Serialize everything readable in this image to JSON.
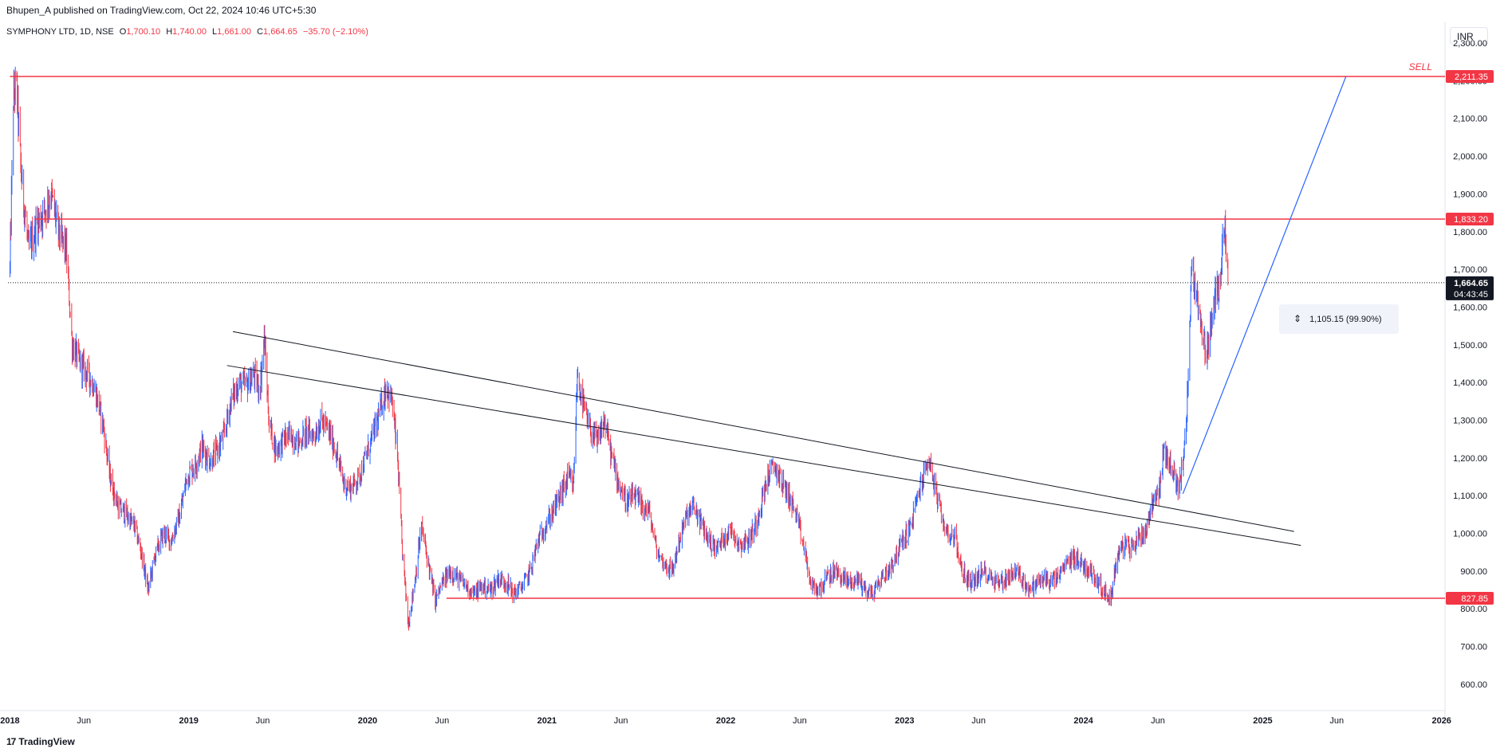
{
  "header": {
    "published": "Bhupen_A published on TradingView.com, Oct 22, 2024 10:46 UTC+5:30"
  },
  "legend": {
    "symbol": "SYMPHONY LTD, 1D, NSE",
    "o_label": "O",
    "o_value": "1,700.10",
    "h_label": "H",
    "h_value": "1,740.00",
    "l_label": "L",
    "l_value": "1,661.00",
    "c_label": "C",
    "c_value": "1,664.65",
    "change": "−35.70 (−2.10%)"
  },
  "currency": "INR",
  "brand": {
    "name": "TradingView",
    "logo_glyph": "17"
  },
  "measure_label": "1,105.15 (99.90%)",
  "sell_label": "SELL",
  "colors": {
    "up": "#2962ff",
    "down": "#f23645",
    "trend": "#131722",
    "projection": "#2962ff",
    "level": "#f23645"
  },
  "chart_data": {
    "type": "candlestick",
    "title": "",
    "y_range": [
      530,
      2355
    ],
    "x_range": [
      "2017-12-28",
      "2026-01-08"
    ],
    "y_ticks": [
      "600.00",
      "700.00",
      "800.00",
      "900.00",
      "1,000.00",
      "1,100.00",
      "1,200.00",
      "1,300.00",
      "1,400.00",
      "1,500.00",
      "1,600.00",
      "1,700.00",
      "1,800.00",
      "1,900.00",
      "2,000.00",
      "2,100.00",
      "2,200.00",
      "2,300.00"
    ],
    "y_tick_values": [
      600,
      700,
      800,
      900,
      1000,
      1100,
      1200,
      1300,
      1400,
      1500,
      1600,
      1700,
      1800,
      1900,
      2000,
      2100,
      2200,
      2300
    ],
    "x_ticks": [
      {
        "label": "2018",
        "date": "2018-01-01",
        "bold": true
      },
      {
        "label": "Jun",
        "date": "2018-06-01",
        "bold": false
      },
      {
        "label": "2019",
        "date": "2019-01-01",
        "bold": true
      },
      {
        "label": "Jun",
        "date": "2019-06-01",
        "bold": false
      },
      {
        "label": "2020",
        "date": "2020-01-01",
        "bold": true
      },
      {
        "label": "Jun",
        "date": "2020-06-01",
        "bold": false
      },
      {
        "label": "2021",
        "date": "2021-01-01",
        "bold": true
      },
      {
        "label": "Jun",
        "date": "2021-06-01",
        "bold": false
      },
      {
        "label": "2022",
        "date": "2022-01-01",
        "bold": true
      },
      {
        "label": "Jun",
        "date": "2022-06-01",
        "bold": false
      },
      {
        "label": "2023",
        "date": "2023-01-01",
        "bold": true
      },
      {
        "label": "Jun",
        "date": "2023-06-01",
        "bold": false
      },
      {
        "label": "2024",
        "date": "2024-01-01",
        "bold": true
      },
      {
        "label": "Jun",
        "date": "2024-06-01",
        "bold": false
      },
      {
        "label": "2025",
        "date": "2025-01-01",
        "bold": true
      },
      {
        "label": "Jun",
        "date": "2025-06-01",
        "bold": false
      },
      {
        "label": "2026",
        "date": "2026-01-01",
        "bold": true
      }
    ],
    "price_path": [
      [
        "2018-01-01",
        1700
      ],
      [
        "2018-01-08",
        2150
      ],
      [
        "2018-01-14",
        2200
      ],
      [
        "2018-01-24",
        1950
      ],
      [
        "2018-02-08",
        1750
      ],
      [
        "2018-02-25",
        1820
      ],
      [
        "2018-03-14",
        1860
      ],
      [
        "2018-03-26",
        1900
      ],
      [
        "2018-04-10",
        1800
      ],
      [
        "2018-04-26",
        1750
      ],
      [
        "2018-05-08",
        1500
      ],
      [
        "2018-05-24",
        1450
      ],
      [
        "2018-06-10",
        1420
      ],
      [
        "2018-06-24",
        1380
      ],
      [
        "2018-07-10",
        1290
      ],
      [
        "2018-07-24",
        1150
      ],
      [
        "2018-08-10",
        1070
      ],
      [
        "2018-08-26",
        1050
      ],
      [
        "2018-09-12",
        1020
      ],
      [
        "2018-09-26",
        950
      ],
      [
        "2018-10-10",
        850
      ],
      [
        "2018-10-24",
        940
      ],
      [
        "2018-11-10",
        1000
      ],
      [
        "2018-11-26",
        980
      ],
      [
        "2018-12-14",
        1050
      ],
      [
        "2018-12-28",
        1150
      ],
      [
        "2019-01-14",
        1180
      ],
      [
        "2019-01-28",
        1230
      ],
      [
        "2019-02-14",
        1190
      ],
      [
        "2019-02-28",
        1220
      ],
      [
        "2019-03-14",
        1260
      ],
      [
        "2019-03-28",
        1350
      ],
      [
        "2019-04-14",
        1400
      ],
      [
        "2019-04-28",
        1390
      ],
      [
        "2019-05-14",
        1420
      ],
      [
        "2019-05-26",
        1380
      ],
      [
        "2019-06-04",
        1520
      ],
      [
        "2019-06-14",
        1290
      ],
      [
        "2019-06-28",
        1220
      ],
      [
        "2019-07-14",
        1250
      ],
      [
        "2019-07-28",
        1260
      ],
      [
        "2019-08-14",
        1240
      ],
      [
        "2019-08-28",
        1270
      ],
      [
        "2019-09-14",
        1260
      ],
      [
        "2019-09-28",
        1300
      ],
      [
        "2019-10-14",
        1270
      ],
      [
        "2019-10-28",
        1220
      ],
      [
        "2019-11-14",
        1130
      ],
      [
        "2019-11-28",
        1120
      ],
      [
        "2019-12-14",
        1150
      ],
      [
        "2019-12-28",
        1200
      ],
      [
        "2020-01-14",
        1270
      ],
      [
        "2020-01-28",
        1330
      ],
      [
        "2020-02-08",
        1390
      ],
      [
        "2020-02-20",
        1350
      ],
      [
        "2020-03-02",
        1200
      ],
      [
        "2020-03-12",
        950
      ],
      [
        "2020-03-24",
        760
      ],
      [
        "2020-04-06",
        870
      ],
      [
        "2020-04-20",
        1020
      ],
      [
        "2020-05-04",
        920
      ],
      [
        "2020-05-18",
        820
      ],
      [
        "2020-06-02",
        870
      ],
      [
        "2020-06-18",
        900
      ],
      [
        "2020-07-04",
        880
      ],
      [
        "2020-07-20",
        860
      ],
      [
        "2020-08-06",
        840
      ],
      [
        "2020-08-22",
        860
      ],
      [
        "2020-09-08",
        850
      ],
      [
        "2020-09-24",
        880
      ],
      [
        "2020-10-10",
        870
      ],
      [
        "2020-10-26",
        840
      ],
      [
        "2020-11-12",
        860
      ],
      [
        "2020-11-28",
        900
      ],
      [
        "2020-12-14",
        980
      ],
      [
        "2020-12-28",
        1020
      ],
      [
        "2021-01-14",
        1060
      ],
      [
        "2021-01-28",
        1100
      ],
      [
        "2021-02-14",
        1150
      ],
      [
        "2021-02-24",
        1120
      ],
      [
        "2021-03-04",
        1420
      ],
      [
        "2021-03-14",
        1350
      ],
      [
        "2021-03-28",
        1280
      ],
      [
        "2021-04-14",
        1240
      ],
      [
        "2021-04-28",
        1300
      ],
      [
        "2021-05-14",
        1200
      ],
      [
        "2021-05-28",
        1130
      ],
      [
        "2021-06-14",
        1080
      ],
      [
        "2021-06-28",
        1100
      ],
      [
        "2021-07-14",
        1070
      ],
      [
        "2021-07-28",
        1060
      ],
      [
        "2021-08-14",
        950
      ],
      [
        "2021-08-28",
        920
      ],
      [
        "2021-09-14",
        900
      ],
      [
        "2021-09-28",
        980
      ],
      [
        "2021-10-14",
        1050
      ],
      [
        "2021-10-28",
        1070
      ],
      [
        "2021-11-14",
        1020
      ],
      [
        "2021-11-28",
        980
      ],
      [
        "2021-12-14",
        960
      ],
      [
        "2021-12-28",
        990
      ],
      [
        "2022-01-14",
        1010
      ],
      [
        "2022-01-28",
        970
      ],
      [
        "2022-02-14",
        980
      ],
      [
        "2022-02-28",
        1010
      ],
      [
        "2022-03-14",
        1080
      ],
      [
        "2022-03-28",
        1150
      ],
      [
        "2022-04-10",
        1180
      ],
      [
        "2022-04-24",
        1140
      ],
      [
        "2022-05-10",
        1100
      ],
      [
        "2022-05-24",
        1050
      ],
      [
        "2022-06-10",
        960
      ],
      [
        "2022-06-24",
        860
      ],
      [
        "2022-07-10",
        850
      ],
      [
        "2022-07-26",
        880
      ],
      [
        "2022-08-12",
        900
      ],
      [
        "2022-08-28",
        880
      ],
      [
        "2022-09-14",
        870
      ],
      [
        "2022-09-28",
        880
      ],
      [
        "2022-10-14",
        850
      ],
      [
        "2022-10-28",
        840
      ],
      [
        "2022-11-14",
        880
      ],
      [
        "2022-11-28",
        900
      ],
      [
        "2022-12-14",
        940
      ],
      [
        "2022-12-28",
        980
      ],
      [
        "2023-01-14",
        1020
      ],
      [
        "2023-01-28",
        1100
      ],
      [
        "2023-02-08",
        1150
      ],
      [
        "2023-02-20",
        1200
      ],
      [
        "2023-03-04",
        1120
      ],
      [
        "2023-03-16",
        1050
      ],
      [
        "2023-03-30",
        1000
      ],
      [
        "2023-04-14",
        990
      ],
      [
        "2023-04-28",
        900
      ],
      [
        "2023-05-14",
        870
      ],
      [
        "2023-05-28",
        880
      ],
      [
        "2023-06-14",
        900
      ],
      [
        "2023-06-28",
        880
      ],
      [
        "2023-07-14",
        870
      ],
      [
        "2023-07-28",
        880
      ],
      [
        "2023-08-14",
        900
      ],
      [
        "2023-08-28",
        880
      ],
      [
        "2023-09-14",
        850
      ],
      [
        "2023-09-28",
        870
      ],
      [
        "2023-10-14",
        880
      ],
      [
        "2023-10-28",
        870
      ],
      [
        "2023-11-14",
        890
      ],
      [
        "2023-11-28",
        920
      ],
      [
        "2023-12-14",
        940
      ],
      [
        "2023-12-28",
        920
      ],
      [
        "2024-01-14",
        900
      ],
      [
        "2024-01-28",
        880
      ],
      [
        "2024-02-14",
        840
      ],
      [
        "2024-02-26",
        830
      ],
      [
        "2024-03-10",
        940
      ],
      [
        "2024-03-24",
        970
      ],
      [
        "2024-04-08",
        960
      ],
      [
        "2024-04-22",
        990
      ],
      [
        "2024-05-08",
        1010
      ],
      [
        "2024-05-20",
        1080
      ],
      [
        "2024-06-04",
        1120
      ],
      [
        "2024-06-14",
        1220
      ],
      [
        "2024-06-28",
        1180
      ],
      [
        "2024-07-12",
        1120
      ],
      [
        "2024-07-24",
        1200
      ],
      [
        "2024-08-02",
        1400
      ],
      [
        "2024-08-08",
        1700
      ],
      [
        "2024-08-18",
        1650
      ],
      [
        "2024-08-28",
        1540
      ],
      [
        "2024-09-08",
        1480
      ],
      [
        "2024-09-18",
        1550
      ],
      [
        "2024-09-28",
        1640
      ],
      [
        "2024-10-06",
        1660
      ],
      [
        "2024-10-12",
        1850
      ],
      [
        "2024-10-16",
        1800
      ],
      [
        "2024-10-22",
        1664.65
      ]
    ],
    "horizontal_levels": [
      {
        "price": 2211.35,
        "label": "2,211.35",
        "from": "2018-01-01"
      },
      {
        "price": 1833.2,
        "label": "1,833.20",
        "from": "2018-02-20"
      },
      {
        "price": 827.85,
        "label": "827.85",
        "from": "2020-06-10"
      }
    ],
    "trendlines": [
      {
        "from": [
          "2019-04-01",
          1535
        ],
        "to": [
          "2025-03-06",
          1005
        ]
      },
      {
        "from": [
          "2019-03-20",
          1445
        ],
        "to": [
          "2025-03-20",
          968
        ]
      }
    ],
    "projection_line": {
      "from": [
        "2024-07-22",
        1105
      ],
      "to": [
        "2025-06-20",
        2212
      ]
    },
    "last_price": {
      "value": 1664.65,
      "label": "1,664.65",
      "countdown": "04:43:45"
    }
  }
}
